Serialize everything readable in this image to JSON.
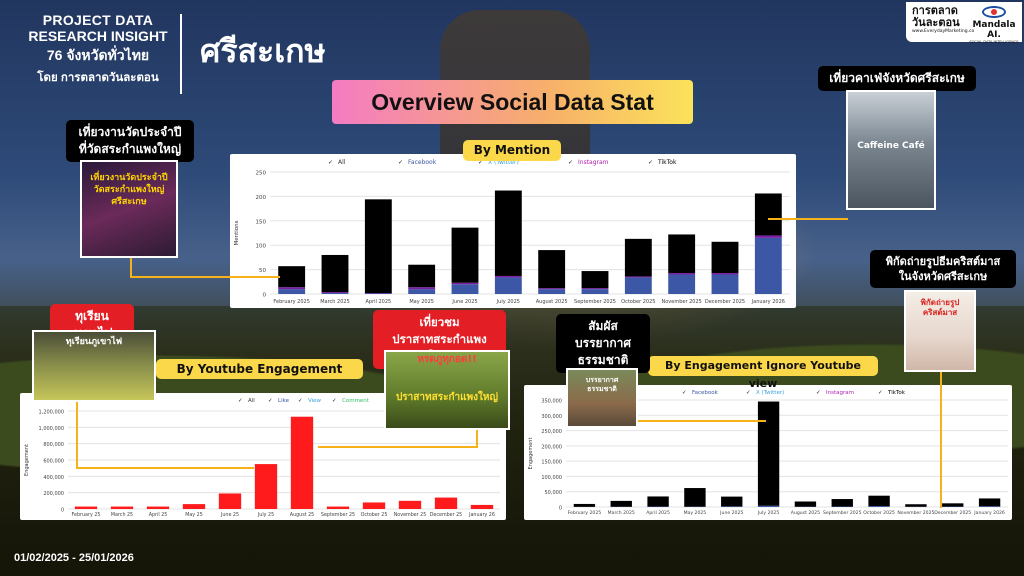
{
  "header": {
    "line1": "PROJECT DATA",
    "line2": "RESEARCH INSIGHT",
    "line3": "76 จังหวัดทั่วไทย",
    "line4": "โดย การตลาดวันละตอน",
    "province": "ศรีสะเกษ"
  },
  "logos": {
    "logo1_name": "การตลาดวันละตอน",
    "logo1_url": "www.EverydayMarketing.co",
    "logo2_name": "Mandala AI.",
    "logo2_tag": "SOCIAL DATA INTELLIGENCE"
  },
  "title": "Overview Social Data Stat",
  "date_range": "01/02/2025 - 25/01/2026",
  "colors": {
    "accent_yellow": "#fbd84a",
    "callout_red": "#e31e24",
    "connector": "#f5b21a",
    "series_black": "#000000",
    "series_blue": "#3b57a6",
    "series_purple": "#7a1fa2",
    "series_red": "#ff1b1b"
  },
  "callouts": {
    "temple_fair": "เที่ยวงานวัดประจำปี\nที่วัดสระกำแพงใหญ่",
    "durian": "ทุเรียนภูเขาไฟ",
    "castle": "เที่ยวชม\nปราสาทสระกำแพงใหญ่",
    "nature": "สัมผัสบรรยากาศ\nธรรมชาติ",
    "cafe": "เที่ยวคาเฟ่จังหวัดศรีสะเกษ",
    "christmas": "พิกัดถ่ายรูปธีมคริสต์มาส\nในจังหวัดศรีสะเกษ"
  },
  "thumbnails": {
    "temple_fair_text": "เที่ยวงานวัดประจำปี วัดสระกำแพงใหญ่ ศรีสะเกษ",
    "durian_text": "ทุเรียนภูเขาไฟ",
    "castle_top": "หรดภูทุกอด!!",
    "castle_mid": "ปราสาทสระกำแพงใหญ่",
    "nature_text": "บรรยากาศธรรมชาติ",
    "cafe_text": "Caffeine Café",
    "christmas_text": "พิกัดถ่ายรูป คริสต์มาส"
  },
  "chart_data": [
    {
      "id": "mention",
      "type": "bar",
      "title": "By Mention",
      "ylabel": "Mentions",
      "ylim": [
        0,
        250
      ],
      "yticks": [
        "250",
        "200",
        "150",
        "100",
        "50",
        "0"
      ],
      "legend": [
        "All",
        "Facebook",
        "X (Twitter)",
        "Instagram",
        "TikTok"
      ],
      "legend_colors": [
        "#333333",
        "#3b57a6",
        "#3aa0d8",
        "#b01fb0",
        "#000000"
      ],
      "categories": [
        "February 2025",
        "March 2025",
        "April 2025",
        "May 2025",
        "June 2025",
        "July 2025",
        "August 2025",
        "September 2025",
        "October 2025",
        "November 2025",
        "December 2025",
        "January 2026"
      ],
      "series": [
        {
          "name": "Facebook",
          "color": "#3b57a6",
          "values": [
            10,
            2,
            1,
            10,
            20,
            34,
            10,
            10,
            34,
            40,
            40,
            115
          ]
        },
        {
          "name": "Instagram",
          "color": "#7a1fa2",
          "values": [
            4,
            2,
            1,
            4,
            3,
            3,
            2,
            2,
            2,
            3,
            3,
            5
          ]
        },
        {
          "name": "TikTok",
          "color": "#000000",
          "values": [
            43,
            76,
            192,
            46,
            113,
            175,
            78,
            35,
            77,
            79,
            64,
            86
          ]
        }
      ]
    },
    {
      "id": "youtube",
      "type": "bar",
      "title": "By  Youtube Engagement",
      "ylabel": "Engagement",
      "ylim": [
        0,
        1200000
      ],
      "yticks": [
        "1,200,000",
        "1,000,000",
        "800,000",
        "600,000",
        "400,000",
        "200,000",
        "0"
      ],
      "legend": [
        "All",
        "Like",
        "View",
        "Comment"
      ],
      "legend_colors": [
        "#333333",
        "#3b57a6",
        "#3aa0d8",
        "#2fbf5f"
      ],
      "categories": [
        "February 25",
        "March 25",
        "April 25",
        "May 25",
        "June 25",
        "July 25",
        "August 25",
        "September 25",
        "October 25",
        "November 25",
        "December 25",
        "January 26"
      ],
      "series": [
        {
          "name": "View",
          "color": "#ff1b1b",
          "values": [
            30000,
            30000,
            30000,
            60000,
            190000,
            550000,
            1130000,
            30000,
            80000,
            100000,
            140000,
            50000
          ]
        }
      ]
    },
    {
      "id": "engagement",
      "type": "bar",
      "title": "By Engagement Ignore Youtube view",
      "ylabel": "Engagement",
      "ylim": [
        0,
        350000
      ],
      "yticks": [
        "350,000",
        "300,000",
        "250,000",
        "200,000",
        "150,000",
        "100,000",
        "50,000",
        "0"
      ],
      "legend": [
        "Facebook",
        "X (Twitter)",
        "Instagram",
        "TikTok"
      ],
      "legend_colors": [
        "#3b57a6",
        "#3aa0d8",
        "#b01fb0",
        "#000000"
      ],
      "categories": [
        "February 2025",
        "March 2025",
        "April 2025",
        "May 2025",
        "June 2025",
        "July 2025",
        "August 2025",
        "September 2025",
        "October 2025",
        "November 2025",
        "December 2025",
        "January 2026"
      ],
      "series": [
        {
          "name": "Facebook",
          "color": "#3b57a6",
          "values": [
            500,
            800,
            1500,
            1000,
            2000,
            4000,
            1000,
            1500,
            3000,
            1000,
            1500,
            2500
          ]
        },
        {
          "name": "TikTok",
          "color": "#000000",
          "values": [
            9500,
            19200,
            33000,
            61000,
            32000,
            341000,
            17000,
            24500,
            34000,
            8000,
            10500,
            25500
          ]
        }
      ]
    }
  ]
}
